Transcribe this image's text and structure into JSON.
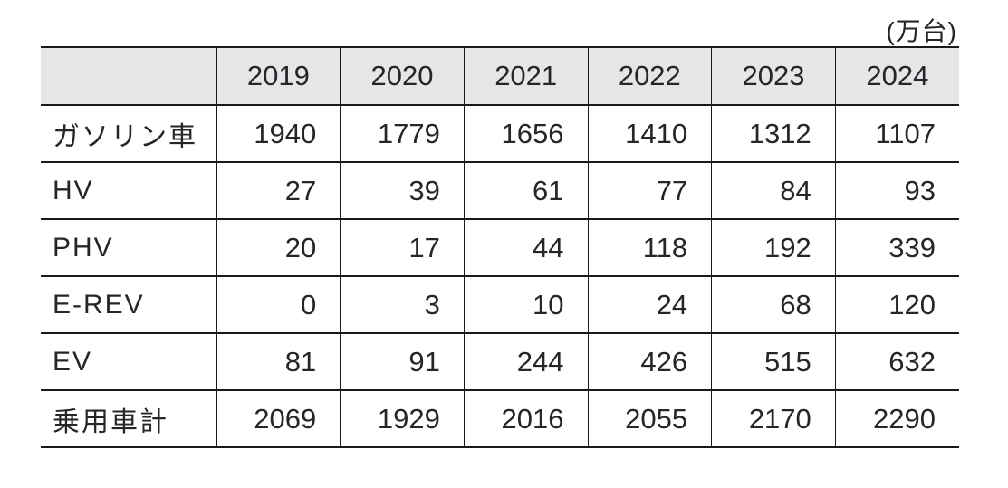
{
  "unit_label": "(万台)",
  "table": {
    "corner_label": "",
    "years": [
      "2019",
      "2020",
      "2021",
      "2022",
      "2023",
      "2024"
    ],
    "rows": [
      {
        "label": "ガソリン車",
        "values": [
          "1940",
          "1779",
          "1656",
          "1410",
          "1312",
          "1107"
        ]
      },
      {
        "label": "HV",
        "values": [
          "27",
          "39",
          "61",
          "77",
          "84",
          "93"
        ]
      },
      {
        "label": "PHV",
        "values": [
          "20",
          "17",
          "44",
          "118",
          "192",
          "339"
        ]
      },
      {
        "label": "E-REV",
        "values": [
          "0",
          "3",
          "10",
          "24",
          "68",
          "120"
        ]
      },
      {
        "label": "EV",
        "values": [
          "81",
          "91",
          "244",
          "426",
          "515",
          "632"
        ]
      },
      {
        "label": "乗用車計",
        "values": [
          "2069",
          "1929",
          "2016",
          "2055",
          "2170",
          "2290"
        ]
      }
    ]
  },
  "colors": {
    "header_bg": "#e6e5e7",
    "border": "#1a1a1c",
    "text": "#26262a",
    "background": "#ffffff"
  },
  "chart_data": {
    "type": "table",
    "title": "",
    "unit": "万台",
    "categories": [
      "2019",
      "2020",
      "2021",
      "2022",
      "2023",
      "2024"
    ],
    "series": [
      {
        "name": "ガソリン車",
        "values": [
          1940,
          1779,
          1656,
          1410,
          1312,
          1107
        ]
      },
      {
        "name": "HV",
        "values": [
          27,
          39,
          61,
          77,
          84,
          93
        ]
      },
      {
        "name": "PHV",
        "values": [
          20,
          17,
          44,
          118,
          192,
          339
        ]
      },
      {
        "name": "E-REV",
        "values": [
          0,
          3,
          10,
          24,
          68,
          120
        ]
      },
      {
        "name": "EV",
        "values": [
          81,
          91,
          244,
          426,
          515,
          632
        ]
      },
      {
        "name": "乗用車計",
        "values": [
          2069,
          1929,
          2016,
          2055,
          2170,
          2290
        ]
      }
    ],
    "layout": {
      "header_row": "years across top",
      "first_column": "powertrain type labels",
      "grid": "horizontal rules full width, vertical rules internal only",
      "unit_note_position": "top-right"
    }
  }
}
